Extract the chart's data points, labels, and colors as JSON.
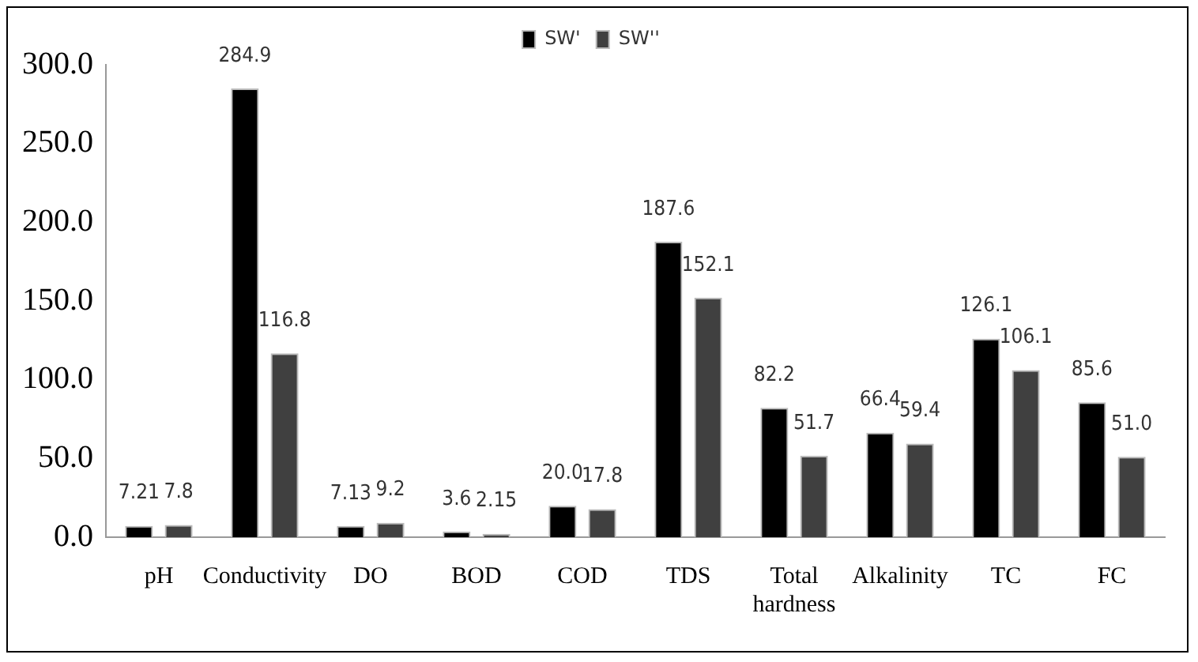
{
  "chart_data": {
    "type": "bar",
    "categories": [
      "pH",
      "Conductivity",
      "DO",
      "BOD",
      "COD",
      "TDS",
      "Total hardness",
      "Alkalinity",
      "TC",
      "FC"
    ],
    "series": [
      {
        "name": "SW'",
        "color": "#000000",
        "values": [
          7.21,
          284.9,
          7.13,
          3.6,
          20.0,
          187.6,
          82.2,
          66.4,
          126.1,
          85.6
        ],
        "value_labels": [
          "7.21",
          "284.9",
          "7.13",
          "3.6",
          "20.0",
          "187.6",
          "82.2",
          "66.4",
          "126.1",
          "85.6"
        ]
      },
      {
        "name": "SW''",
        "color": "#404040",
        "values": [
          7.8,
          116.8,
          9.2,
          2.15,
          17.8,
          152.1,
          51.7,
          59.4,
          106.1,
          51.0
        ],
        "value_labels": [
          "7.8",
          "116.8",
          "9.2",
          "2.15",
          "17.8",
          "152.1",
          "51.7",
          "59.4",
          "106.1",
          "51.0"
        ]
      }
    ],
    "ylim": [
      0,
      300
    ],
    "yticks": [
      {
        "value": 0,
        "label": "0.0"
      },
      {
        "value": 50,
        "label": "50.0"
      },
      {
        "value": 100,
        "label": "100.0"
      },
      {
        "value": 150,
        "label": "150.0"
      },
      {
        "value": 200,
        "label": "200.0"
      },
      {
        "value": 250,
        "label": "250.0"
      },
      {
        "value": 300,
        "label": "300.0"
      }
    ],
    "grid": false,
    "legend": "top"
  }
}
